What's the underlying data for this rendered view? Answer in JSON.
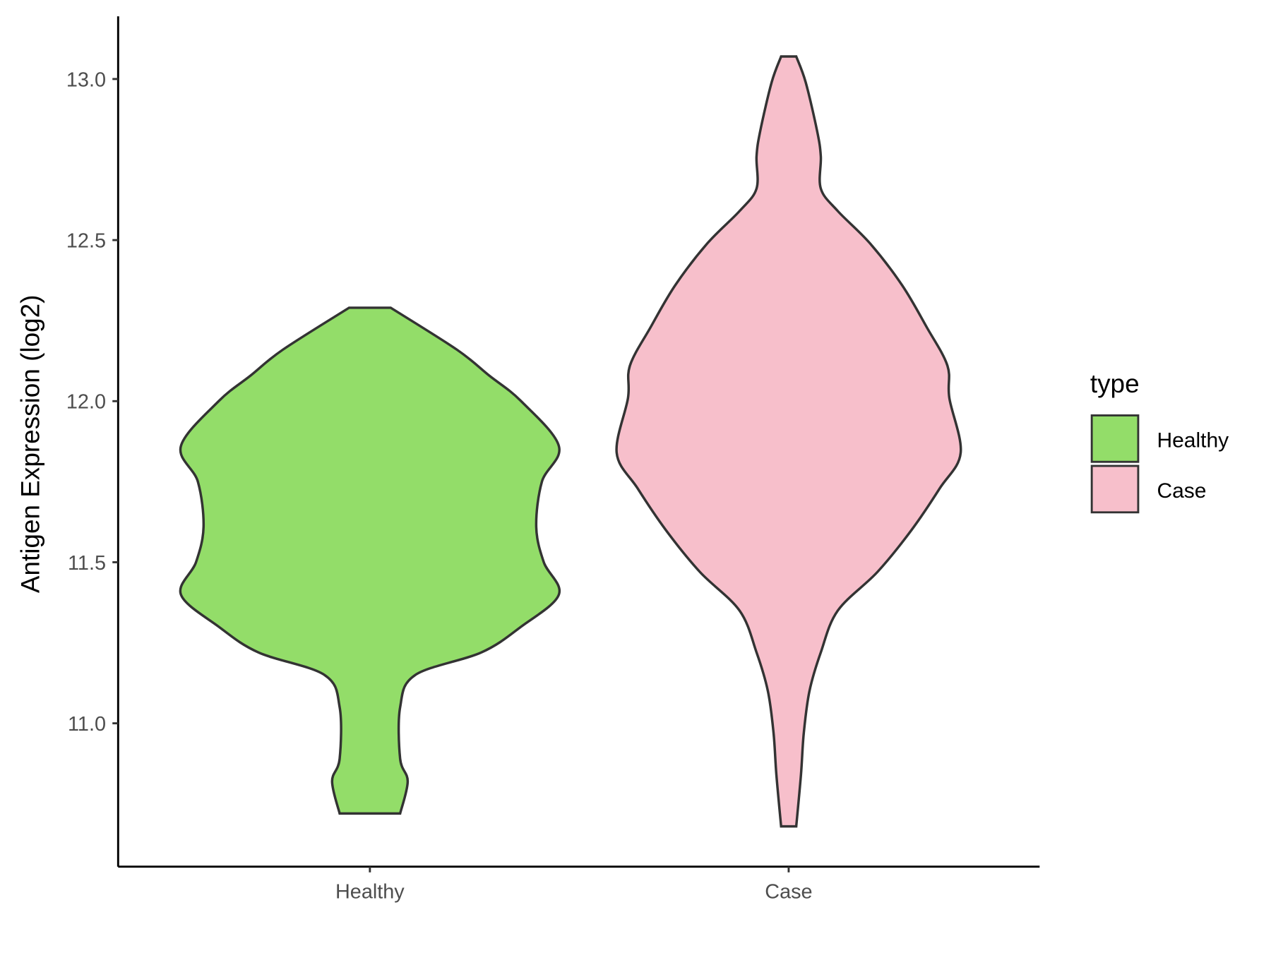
{
  "chart_data": {
    "type": "violin",
    "title": "",
    "xlabel": "",
    "ylabel": "Antigen Expression (log2)",
    "ylim": [
      10.56,
      13.19
    ],
    "yticks": [
      "11.0",
      "11.5",
      "12.0",
      "12.5",
      "13.0"
    ],
    "categories": [
      "Healthy",
      "Case"
    ],
    "grid": false,
    "legend": {
      "title": "type",
      "position": "right",
      "entries": [
        "Healthy",
        "Case"
      ]
    },
    "series": [
      {
        "name": "Healthy",
        "color": "#93DD69",
        "profile_value": [
          12.29,
          12.16,
          12.08,
          12.0,
          11.86,
          11.75,
          11.61,
          11.5,
          11.4,
          11.3,
          11.22,
          11.15,
          11.05,
          10.89,
          10.82,
          10.72
        ],
        "profile_relative_density": [
          0.11,
          0.46,
          0.63,
          0.8,
          1.0,
          0.91,
          0.88,
          0.92,
          1.0,
          0.8,
          0.59,
          0.24,
          0.16,
          0.16,
          0.2,
          0.16
        ]
      },
      {
        "name": "Case",
        "color": "#F7BFCB",
        "profile_value": [
          13.07,
          12.99,
          12.84,
          12.76,
          12.66,
          12.59,
          12.49,
          12.36,
          12.23,
          12.11,
          12.01,
          11.84,
          11.73,
          11.6,
          11.47,
          11.35,
          11.22,
          11.1,
          10.97,
          10.84,
          10.68
        ],
        "profile_relative_density": [
          0.04,
          0.09,
          0.15,
          0.17,
          0.17,
          0.26,
          0.43,
          0.6,
          0.73,
          0.84,
          0.85,
          0.91,
          0.8,
          0.65,
          0.47,
          0.26,
          0.17,
          0.11,
          0.08,
          0.065,
          0.04
        ]
      }
    ]
  }
}
